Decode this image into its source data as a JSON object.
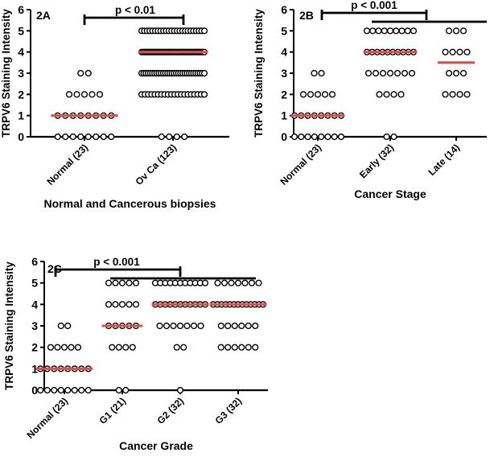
{
  "figure": {
    "background": "#ffffff",
    "description_visible_text_only": true
  },
  "colors": {
    "axis": "#000000",
    "marker_stroke": "#000000",
    "marker_fill": "#ffffff",
    "median_line": "#dd4f4a",
    "significance_bar": "#000000"
  },
  "chart_data": [
    {
      "type": "scatter",
      "variant": "column-scatter-dotplot",
      "panel_label": "2A",
      "ylabel": "TRPV6 Staining Intensity",
      "xlabel": "Normal and Cancerous biopsies",
      "ylim": [
        0,
        6
      ],
      "yticks": [
        0,
        1,
        2,
        3,
        4,
        5,
        6
      ],
      "grid": false,
      "legend": "none",
      "marker": "open-circle",
      "median_color": "#dd4f4a",
      "groups": [
        {
          "label": "Normal (23)",
          "n": 23,
          "median": 1,
          "points": [
            {
              "y": 0,
              "n": 8
            },
            {
              "y": 1,
              "n": 8
            },
            {
              "y": 2,
              "n": 5
            },
            {
              "y": 3,
              "n": 2
            }
          ]
        },
        {
          "label": "Ov Ca (123)",
          "n": 123,
          "median": 4,
          "points": [
            {
              "y": 0,
              "n": 4
            },
            {
              "y": 2,
              "n": 20
            },
            {
              "y": 3,
              "n": 30
            },
            {
              "y": 4,
              "n": 45
            },
            {
              "y": 5,
              "n": 24
            }
          ]
        }
      ],
      "significance": [
        {
          "label": "p < 0.01",
          "between": [
            "Normal (23)",
            "Ov Ca (123)"
          ]
        }
      ]
    },
    {
      "type": "scatter",
      "variant": "column-scatter-dotplot",
      "panel_label": "2B",
      "ylabel": "TRPV6 Staining Intensity",
      "xlabel": "Cancer Stage",
      "ylim": [
        0,
        6
      ],
      "yticks": [
        0,
        1,
        2,
        3,
        4,
        5,
        6
      ],
      "grid": false,
      "legend": "none",
      "marker": "open-circle",
      "median_color": "#dd4f4a",
      "groups": [
        {
          "label": "Normal (23)",
          "n": 23,
          "median": 1,
          "points": [
            {
              "y": 0,
              "n": 8
            },
            {
              "y": 1,
              "n": 8
            },
            {
              "y": 2,
              "n": 5
            },
            {
              "y": 3,
              "n": 2
            }
          ]
        },
        {
          "label": "Early (32)",
          "n": 32,
          "median": 4,
          "points": [
            {
              "y": 0,
              "n": 2
            },
            {
              "y": 2,
              "n": 4
            },
            {
              "y": 3,
              "n": 7
            },
            {
              "y": 4,
              "n": 10
            },
            {
              "y": 5,
              "n": 9
            }
          ]
        },
        {
          "label": "Late (14)",
          "n": 14,
          "median": 3.5,
          "points": [
            {
              "y": 2,
              "n": 4
            },
            {
              "y": 3,
              "n": 3
            },
            {
              "y": 4,
              "n": 4
            },
            {
              "y": 5,
              "n": 3
            }
          ]
        }
      ],
      "significance": [
        {
          "label": "p < 0.001",
          "between": [
            "Normal (23)",
            "Early (32)"
          ]
        },
        {
          "label": "",
          "between": [
            "Early (32)",
            "Late (14)"
          ]
        }
      ]
    },
    {
      "type": "scatter",
      "variant": "column-scatter-dotplot",
      "panel_label": "2C",
      "ylabel": "TRPV6 Staining Intensity",
      "xlabel": "Cancer Grade",
      "ylim": [
        0,
        6
      ],
      "yticks": [
        0,
        1,
        2,
        3,
        4,
        5,
        6
      ],
      "grid": false,
      "legend": "none",
      "marker": "open-circle",
      "median_color": "#dd4f4a",
      "groups": [
        {
          "label": "Normal (23)",
          "n": 23,
          "median": 1,
          "points": [
            {
              "y": 0,
              "n": 8
            },
            {
              "y": 1,
              "n": 8
            },
            {
              "y": 2,
              "n": 5
            },
            {
              "y": 3,
              "n": 2
            }
          ]
        },
        {
          "label": "G1 (21)",
          "n": 21,
          "median": 3,
          "points": [
            {
              "y": 0,
              "n": 2
            },
            {
              "y": 2,
              "n": 4
            },
            {
              "y": 3,
              "n": 5
            },
            {
              "y": 4,
              "n": 5
            },
            {
              "y": 5,
              "n": 5
            }
          ]
        },
        {
          "label": "G2 (32)",
          "n": 32,
          "median": 4,
          "points": [
            {
              "y": 0,
              "n": 1
            },
            {
              "y": 2,
              "n": 2
            },
            {
              "y": 3,
              "n": 7
            },
            {
              "y": 4,
              "n": 11
            },
            {
              "y": 5,
              "n": 11
            }
          ]
        },
        {
          "label": "G3 (32)",
          "n": 32,
          "median": 4,
          "points": [
            {
              "y": 2,
              "n": 6
            },
            {
              "y": 3,
              "n": 6
            },
            {
              "y": 4,
              "n": 13
            },
            {
              "y": 5,
              "n": 7
            }
          ]
        }
      ],
      "significance": [
        {
          "label": "p < 0.001",
          "between": [
            "Normal (23)",
            "G2 (32)"
          ]
        },
        {
          "label": "",
          "between": [
            "G1 (21)",
            "G3 (32)"
          ]
        }
      ]
    }
  ]
}
